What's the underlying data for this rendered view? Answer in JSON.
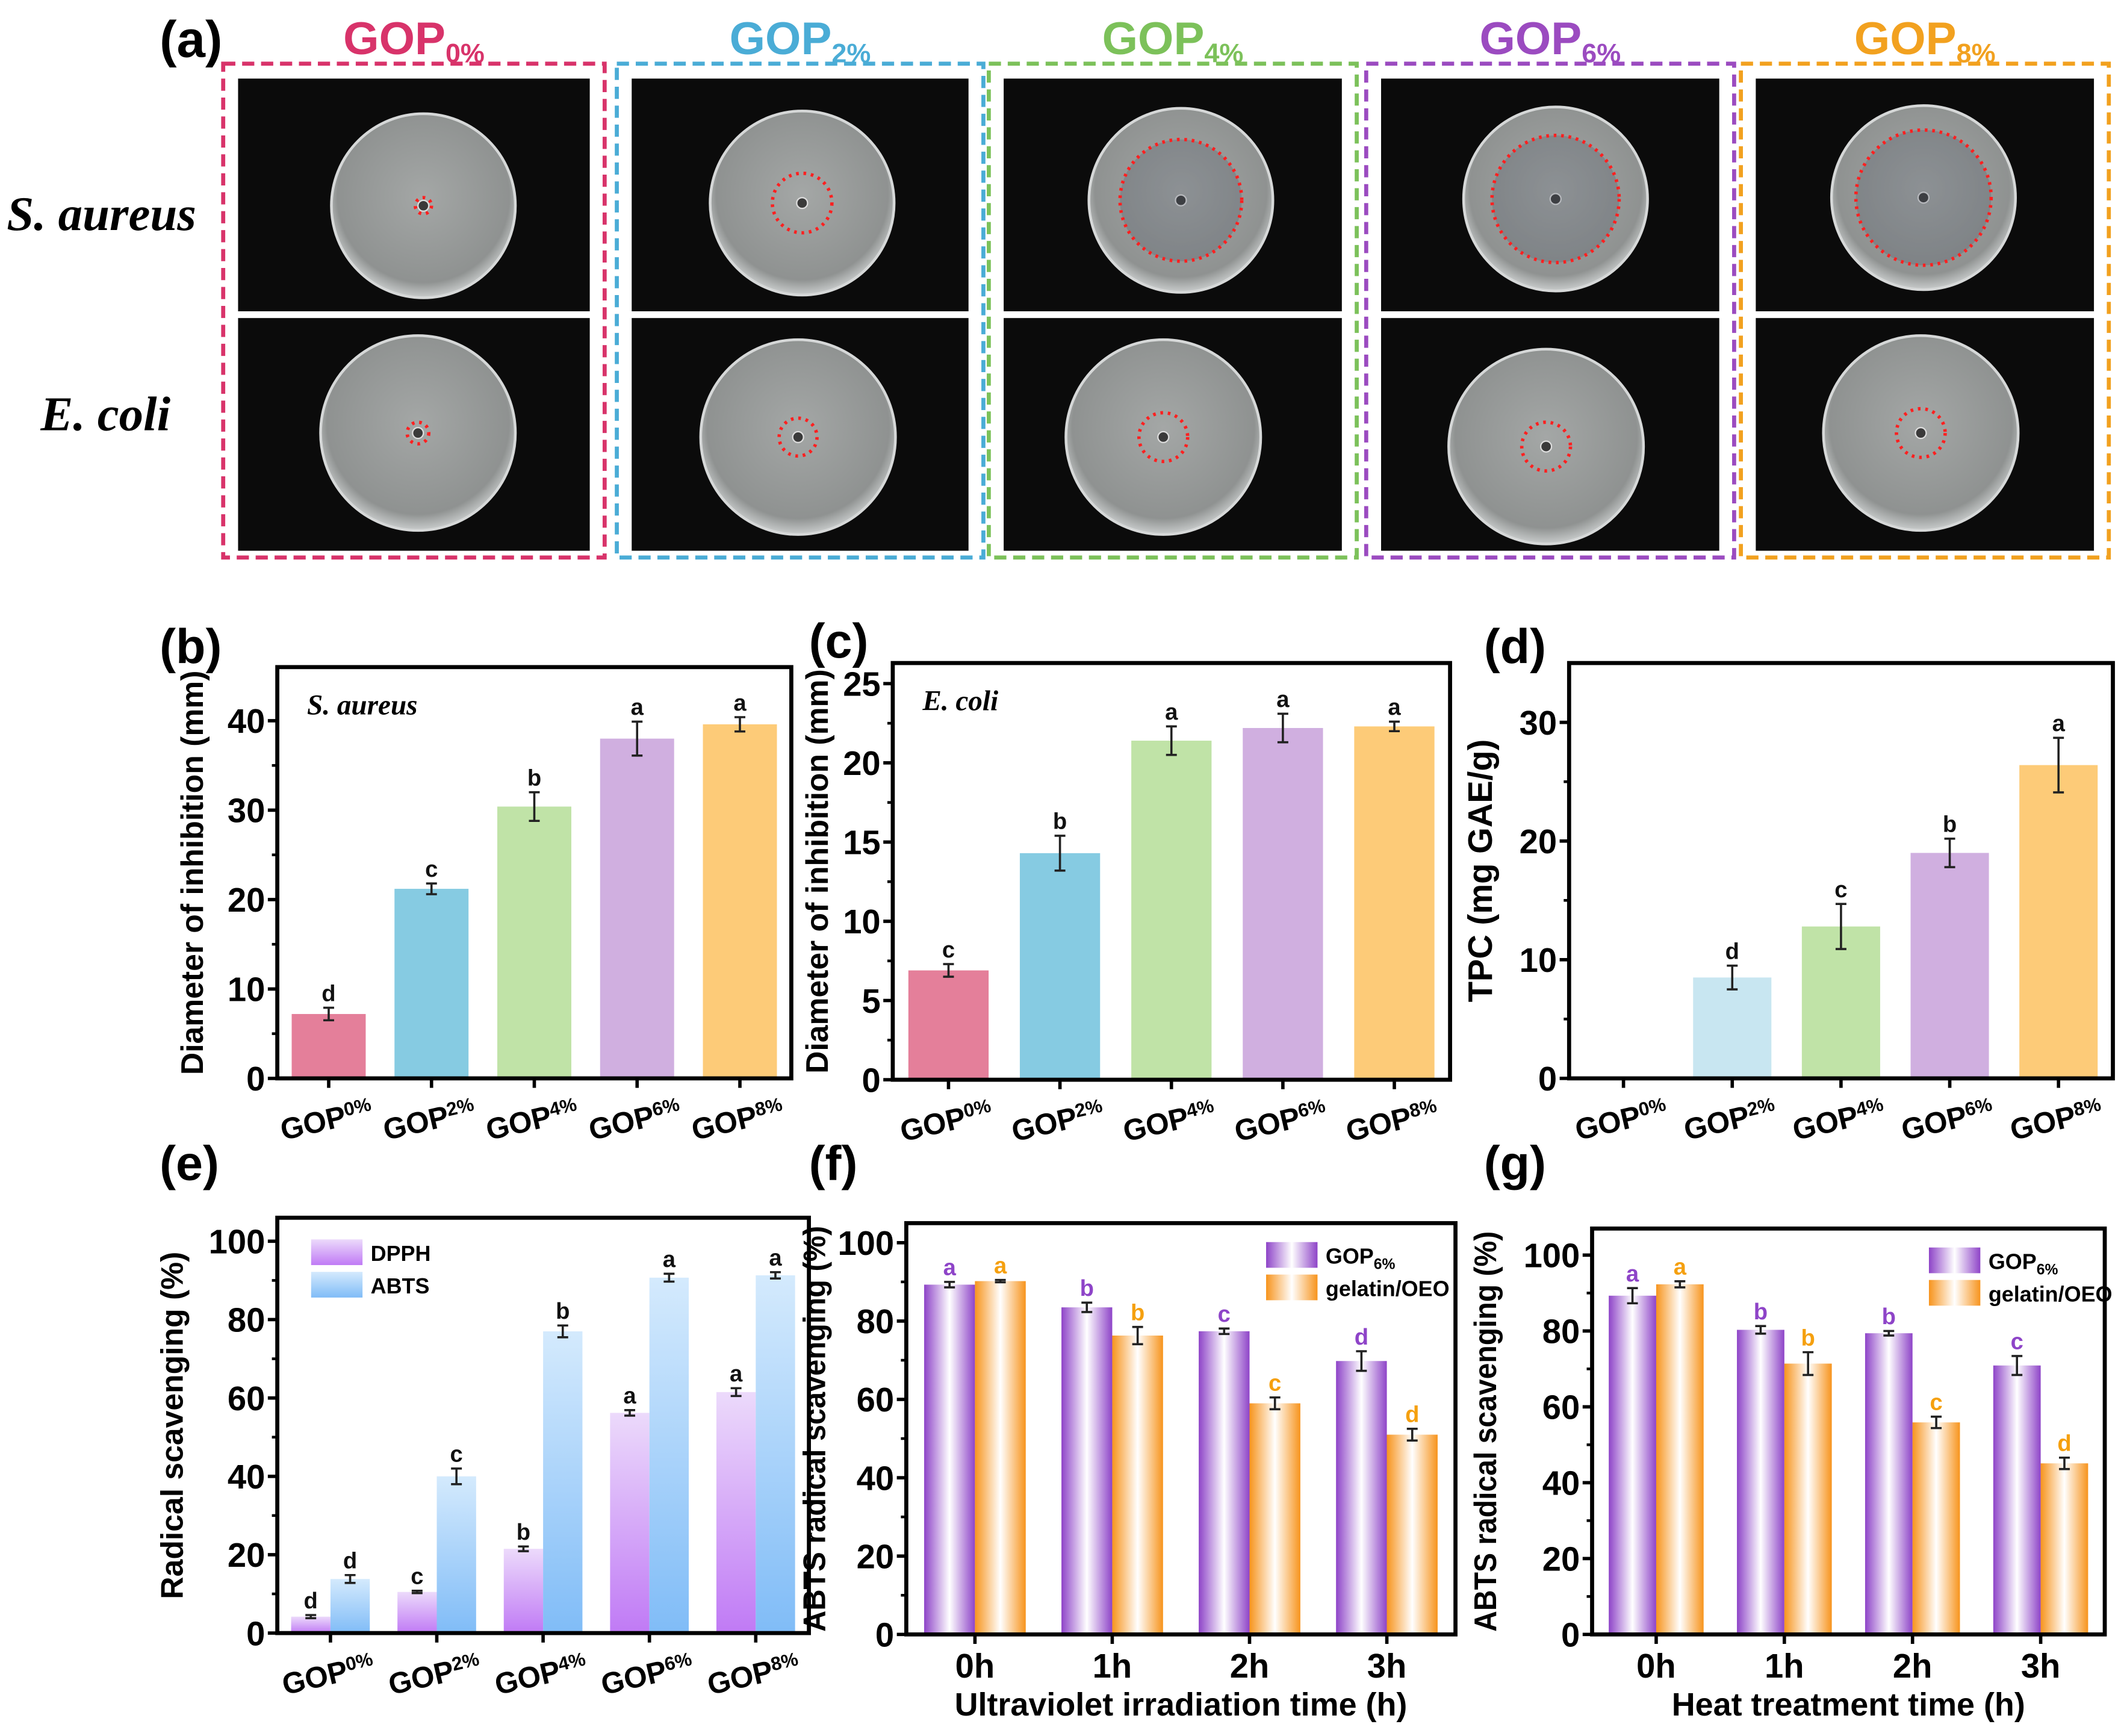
{
  "panel_a": {
    "label": "(a)",
    "columns": [
      {
        "base": "GOP",
        "sub": "0%",
        "color": "#d8336a"
      },
      {
        "base": "GOP",
        "sub": "2%",
        "color": "#4aacd6"
      },
      {
        "base": "GOP",
        "sub": "4%",
        "color": "#7cc15a"
      },
      {
        "base": "GOP",
        "sub": "6%",
        "color": "#9b4bc0"
      },
      {
        "base": "GOP",
        "sub": "8%",
        "color": "#f2a11f"
      }
    ],
    "rows": [
      "S. aureus",
      "E. coli"
    ],
    "zone_color": "#ff2020"
  },
  "chart_data": [
    {
      "panel": "(b)",
      "type": "bar",
      "annotation": "S. aureus",
      "ylabel": "Diameter of inhibition (mm)",
      "xlabel": "",
      "ylim": [
        0,
        46
      ],
      "yticks": [
        0,
        10,
        20,
        30,
        40
      ],
      "categories": [
        {
          "base": "GOP",
          "sub": "0%"
        },
        {
          "base": "GOP",
          "sub": "2%"
        },
        {
          "base": "GOP",
          "sub": "4%"
        },
        {
          "base": "GOP",
          "sub": "6%"
        },
        {
          "base": "GOP",
          "sub": "8%"
        }
      ],
      "series": [
        {
          "name": "",
          "values": [
            7.2,
            21.2,
            30.4,
            38.0,
            39.6
          ],
          "errors": [
            0.7,
            0.6,
            1.6,
            1.9,
            0.8
          ],
          "letters": [
            "d",
            "c",
            "b",
            "a",
            "a"
          ],
          "colors": [
            "#e47f9a",
            "#86cbe2",
            "#c0e3a7",
            "#d0afe0",
            "#fdcb78"
          ]
        }
      ]
    },
    {
      "panel": "(c)",
      "type": "bar",
      "annotation": "E. coli",
      "ylabel": "Diameter of inhibition (mm)",
      "xlabel": "",
      "ylim": [
        0,
        26.3
      ],
      "yticks": [
        0,
        5,
        10,
        15,
        20,
        25
      ],
      "categories": [
        {
          "base": "GOP",
          "sub": "0%"
        },
        {
          "base": "GOP",
          "sub": "2%"
        },
        {
          "base": "GOP",
          "sub": "4%"
        },
        {
          "base": "GOP",
          "sub": "6%"
        },
        {
          "base": "GOP",
          "sub": "8%"
        }
      ],
      "series": [
        {
          "name": "",
          "values": [
            6.9,
            14.3,
            21.4,
            22.2,
            22.3
          ],
          "errors": [
            0.4,
            1.1,
            0.9,
            0.9,
            0.3
          ],
          "letters": [
            "c",
            "b",
            "a",
            "a",
            "a"
          ],
          "colors": [
            "#e47f9a",
            "#86cbe2",
            "#c0e3a7",
            "#d0afe0",
            "#fdcb78"
          ]
        }
      ]
    },
    {
      "panel": "(d)",
      "type": "bar",
      "annotation": "",
      "ylabel": "TPC (mg GAE/g)",
      "xlabel": "",
      "ylim": [
        0,
        35
      ],
      "yticks": [
        0,
        10,
        20,
        30
      ],
      "categories": [
        {
          "base": "GOP",
          "sub": "0%"
        },
        {
          "base": "GOP",
          "sub": "2%"
        },
        {
          "base": "GOP",
          "sub": "4%"
        },
        {
          "base": "GOP",
          "sub": "6%"
        },
        {
          "base": "GOP",
          "sub": "8%"
        }
      ],
      "series": [
        {
          "name": "",
          "values": [
            0,
            8.5,
            12.8,
            19.0,
            26.4
          ],
          "errors": [
            0,
            1.0,
            1.9,
            1.2,
            2.3
          ],
          "letters": [
            "",
            "d",
            "c",
            "b",
            "a"
          ],
          "colors": [
            "#c8e6f1",
            "#c8e6f1",
            "#c0e3a7",
            "#d0afe0",
            "#fdcb78"
          ]
        }
      ]
    },
    {
      "panel": "(e)",
      "type": "bar",
      "annotation": "",
      "ylabel": "Radical scavenging (%)",
      "xlabel": "",
      "ylim": [
        0,
        106
      ],
      "yticks": [
        0,
        20,
        40,
        60,
        80,
        100
      ],
      "categories": [
        {
          "base": "GOP",
          "sub": "0%"
        },
        {
          "base": "GOP",
          "sub": "2%"
        },
        {
          "base": "GOP",
          "sub": "4%"
        },
        {
          "base": "GOP",
          "sub": "6%"
        },
        {
          "base": "GOP",
          "sub": "8%"
        }
      ],
      "legend": "top-left",
      "series": [
        {
          "name": "DPPH",
          "values": [
            4.2,
            10.5,
            21.5,
            56.2,
            61.5
          ],
          "errors": [
            0.4,
            0.3,
            0.6,
            0.7,
            1.0
          ],
          "letters": [
            "d",
            "c",
            "b",
            "a",
            "a"
          ],
          "color": "#c07af5",
          "light": "#ecdafb",
          "letter_color": "#111111"
        },
        {
          "name": "ABTS",
          "values": [
            13.8,
            40.0,
            77.0,
            90.7,
            91.3
          ],
          "errors": [
            1.0,
            2.0,
            1.5,
            1.0,
            0.8
          ],
          "letters": [
            "d",
            "c",
            "b",
            "a",
            "a"
          ],
          "color": "#80bcf7",
          "light": "#d4eafd",
          "letter_color": "#111111"
        }
      ]
    },
    {
      "panel": "(f)",
      "type": "bar",
      "annotation": "",
      "ylabel": "ABTS radical scavenging (%)",
      "xlabel": "Ultraviolet irradiation time (h)",
      "ylim": [
        0,
        105
      ],
      "yticks": [
        0,
        20,
        40,
        60,
        80,
        100
      ],
      "categories": [
        {
          "base": "0h",
          "sub": ""
        },
        {
          "base": "1h",
          "sub": ""
        },
        {
          "base": "2h",
          "sub": ""
        },
        {
          "base": "3h",
          "sub": ""
        }
      ],
      "legend": "top-right",
      "series": [
        {
          "name": "GOP",
          "name_sub": "6%",
          "values": [
            89.3,
            83.5,
            77.4,
            69.8
          ],
          "errors": [
            0.7,
            1.2,
            0.7,
            2.5
          ],
          "letters": [
            "a",
            "b",
            "c",
            "d"
          ],
          "color": "#8e44c8",
          "light": "#ffffff",
          "letter_color": "#8e44c8"
        },
        {
          "name": "gelatin/OEO",
          "name_sub": "",
          "values": [
            90.2,
            76.3,
            59.0,
            51.0
          ],
          "errors": [
            0.3,
            2.2,
            1.5,
            1.5
          ],
          "letters": [
            "a",
            "b",
            "c",
            "d"
          ],
          "color": "#f7941d",
          "light": "#ffffff",
          "letter_color": "#f5a00f"
        }
      ]
    },
    {
      "panel": "(g)",
      "type": "bar",
      "annotation": "",
      "ylabel": "ABTS radical scavenging (%)",
      "xlabel": "Heat treatment time (h)",
      "ylim": [
        0,
        107
      ],
      "yticks": [
        0,
        20,
        40,
        60,
        80,
        100
      ],
      "categories": [
        {
          "base": "0h",
          "sub": ""
        },
        {
          "base": "1h",
          "sub": ""
        },
        {
          "base": "2h",
          "sub": ""
        },
        {
          "base": "3h",
          "sub": ""
        }
      ],
      "legend": "top-right",
      "series": [
        {
          "name": "GOP",
          "name_sub": "6%",
          "values": [
            89.3,
            80.3,
            79.4,
            70.9
          ],
          "errors": [
            2.0,
            1.0,
            0.6,
            2.5
          ],
          "letters": [
            "a",
            "b",
            "b",
            "c"
          ],
          "color": "#8e44c8",
          "light": "#ffffff",
          "letter_color": "#8e44c8"
        },
        {
          "name": "gelatin/OEO",
          "name_sub": "",
          "values": [
            92.3,
            71.4,
            55.9,
            45.1
          ],
          "errors": [
            0.8,
            3.0,
            1.5,
            1.5
          ],
          "letters": [
            "a",
            "b",
            "c",
            "d"
          ],
          "color": "#f7941d",
          "light": "#ffffff",
          "letter_color": "#f5a00f"
        }
      ]
    }
  ]
}
